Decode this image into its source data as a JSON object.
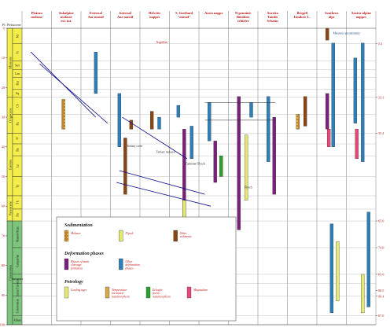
{
  "axis": {
    "unit": "m.y.",
    "ticks": [
      {
        "value": 0,
        "label": "0"
      },
      {
        "value": 10,
        "label": "10"
      },
      {
        "value": 20,
        "label": "20"
      },
      {
        "value": 30,
        "label": "30"
      },
      {
        "value": 40,
        "label": "40"
      },
      {
        "value": 50,
        "label": "50"
      },
      {
        "value": 60,
        "label": "60"
      },
      {
        "value": 70,
        "label": "70"
      },
      {
        "value": 80,
        "label": "80"
      },
      {
        "value": 90,
        "label": "90"
      },
      {
        "value": 100,
        "label": "100"
      }
    ],
    "right_ticks": [
      {
        "value": 5.2,
        "label": "5.2"
      },
      {
        "value": 23.3,
        "label": "23.3"
      },
      {
        "value": 35.4,
        "label": "35.4"
      },
      {
        "value": 65.0,
        "label": "65.0"
      },
      {
        "value": 74.0,
        "label": "74.0"
      },
      {
        "value": 83.0,
        "label": "83.0"
      },
      {
        "value": 88.5,
        "label": "88.5"
      },
      {
        "value": 90.4,
        "label": "90.4"
      },
      {
        "value": 97.0,
        "label": "97.0"
      }
    ]
  },
  "corner": {
    "label": "Pl / Pleistocene"
  },
  "periods": [
    {
      "label": "Miocene",
      "from": 0,
      "to": 23.3,
      "color": "#f4ee4a"
    },
    {
      "label": "Oligocene",
      "from": 23.3,
      "to": 35.4,
      "color": "#f4ee4a"
    },
    {
      "label": "Eocene",
      "from": 35.4,
      "to": 56.5,
      "color": "#f4ee4a"
    },
    {
      "label": "Paleocene",
      "from": 56.5,
      "to": 65.0,
      "color": "#f4ee4a"
    },
    {
      "label": "Cretaceous",
      "from": 65.0,
      "to": 100,
      "color": "#7dc47d"
    }
  ],
  "stages": [
    {
      "label": "Me",
      "from": 0,
      "to": 5.2
    },
    {
      "label": "To",
      "from": 5.2,
      "to": 11
    },
    {
      "label": "Serr",
      "from": 11,
      "to": 14
    },
    {
      "label": "Lan",
      "from": 14,
      "to": 16.5
    },
    {
      "label": "Bur",
      "from": 16.5,
      "to": 20.5
    },
    {
      "label": "Aq",
      "from": 20.5,
      "to": 23.3
    },
    {
      "label": "Ch",
      "from": 23.3,
      "to": 29
    },
    {
      "label": "Ru",
      "from": 29,
      "to": 35.4
    },
    {
      "label": "Pr",
      "from": 35.4,
      "to": 39
    },
    {
      "label": "Ba",
      "from": 39,
      "to": 43
    },
    {
      "label": "Lu",
      "from": 43,
      "to": 50
    },
    {
      "label": "Yp",
      "from": 50,
      "to": 56.5
    },
    {
      "label": "Th",
      "from": 56.5,
      "to": 61
    },
    {
      "label": "Da",
      "from": 61,
      "to": 65
    },
    {
      "label": "Maastrichtian",
      "from": 65,
      "to": 74
    },
    {
      "label": "Campanian",
      "from": 74,
      "to": 83
    },
    {
      "label": "Santonian",
      "from": 83,
      "to": 86
    },
    {
      "label": "Coniacian Turonian",
      "from": 86,
      "to": 90.4
    },
    {
      "label": "Cenomanian",
      "from": 90.4,
      "to": 97
    },
    {
      "label": "Albian",
      "from": 97,
      "to": 100
    }
  ],
  "columns": [
    {
      "label": "Plateau molasse"
    },
    {
      "label": "Subalpine molasse ext. int."
    },
    {
      "label": "External Aar massif"
    },
    {
      "label": "Internal Aar massif"
    },
    {
      "label": "Helvetic nappes"
    },
    {
      "label": "S. Gotthard \"massif\""
    },
    {
      "label": "Aosta nappe"
    },
    {
      "label": "N-penninic Bündner schiefer"
    },
    {
      "label": "Suretta Tambo Schams"
    },
    {
      "label": "Bergell Insubric L."
    },
    {
      "label": "Southern alps"
    },
    {
      "label": "Austro-alpine nappes"
    }
  ],
  "bars": [
    {
      "col": 1,
      "off": 0.35,
      "from": 24,
      "to": 34,
      "color": "#c97e2a",
      "kind": "pattern"
    },
    {
      "col": 2,
      "off": 0.45,
      "from": 8,
      "to": 22,
      "color": "#2c7fb8"
    },
    {
      "col": 3,
      "off": 0.25,
      "from": 22,
      "to": 40,
      "color": "#2c7fb8"
    },
    {
      "col": 3,
      "off": 0.45,
      "from": 37,
      "to": 56,
      "color": "#8b4513"
    },
    {
      "col": 3,
      "off": 0.65,
      "from": 31,
      "to": 34,
      "color": "#8b4513"
    },
    {
      "col": 4,
      "off": 0.35,
      "from": 28,
      "to": 34,
      "color": "#8b4513"
    },
    {
      "col": 4,
      "off": 0.6,
      "from": 30,
      "to": 34,
      "color": "#2c7fb8"
    },
    {
      "col": 5,
      "off": 0.25,
      "from": 26,
      "to": 30,
      "color": "#2c7fb8"
    },
    {
      "col": 5,
      "off": 0.45,
      "from": 34,
      "to": 65,
      "color": "#7a1f7a"
    },
    {
      "col": 5,
      "off": 0.45,
      "from": 58,
      "to": 68,
      "color": "#e2e870"
    },
    {
      "col": 5,
      "off": 0.7,
      "from": 33,
      "to": 44,
      "color": "#2c7fb8"
    },
    {
      "col": 6,
      "off": 0.3,
      "from": 25,
      "to": 38,
      "color": "#2c7fb8"
    },
    {
      "col": 6,
      "off": 0.5,
      "from": 38,
      "to": 52,
      "color": "#7a1f7a"
    },
    {
      "col": 6,
      "off": 0.7,
      "from": 43,
      "to": 50,
      "color": "#2ca02c"
    },
    {
      "col": 7,
      "off": 0.3,
      "from": 23,
      "to": 68,
      "color": "#7a1f7a"
    },
    {
      "col": 7,
      "off": 0.55,
      "from": 36,
      "to": 58,
      "color": "#e2e870"
    },
    {
      "col": 7,
      "off": 0.72,
      "from": 25,
      "to": 30,
      "color": "#2c7fb8"
    },
    {
      "col": 8,
      "off": 0.3,
      "from": 23,
      "to": 45,
      "color": "#2c7fb8"
    },
    {
      "col": 8,
      "off": 0.5,
      "from": 30,
      "to": 56,
      "color": "#7a1f7a"
    },
    {
      "col": 9,
      "off": 0.3,
      "from": 29,
      "to": 34,
      "color": "#e8477a",
      "kind": "pattern"
    },
    {
      "col": 9,
      "off": 0.55,
      "from": 23,
      "to": 33,
      "color": "#8b4513"
    },
    {
      "col": 10,
      "off": 0.3,
      "from": 0,
      "to": 4,
      "color": "#8b4513"
    },
    {
      "col": 10,
      "off": 0.5,
      "from": 5,
      "to": 40,
      "color": "#2c7fb8"
    },
    {
      "col": 10,
      "off": 0.3,
      "from": 22,
      "to": 34,
      "color": "#7a1f7a"
    },
    {
      "col": 10,
      "off": 0.35,
      "from": 34,
      "to": 40,
      "color": "#e8477a"
    },
    {
      "col": 10,
      "off": 0.45,
      "from": 66,
      "to": 96,
      "color": "#2c7fb8"
    },
    {
      "col": 10,
      "off": 0.65,
      "from": 72,
      "to": 92,
      "color": "#e2e870"
    },
    {
      "col": 11,
      "off": 0.25,
      "from": 10,
      "to": 32,
      "color": "#2c7fb8"
    },
    {
      "col": 11,
      "off": 0.5,
      "from": 5,
      "to": 45,
      "color": "#2c7fb8"
    },
    {
      "col": 11,
      "off": 0.3,
      "from": 34,
      "to": 44,
      "color": "#e8477a"
    },
    {
      "col": 11,
      "off": 0.7,
      "from": 62,
      "to": 94,
      "color": "#2c7fb8"
    },
    {
      "col": 11,
      "off": 0.5,
      "from": 83,
      "to": 96,
      "color": "#e2e870"
    }
  ],
  "annotations": [
    {
      "text": "Mesozoic unconformity",
      "col": 10,
      "val": 2,
      "color": "#0a3a8a"
    },
    {
      "text": "Nagelfluh",
      "col": 4,
      "val": 5,
      "color": "#c01818"
    },
    {
      "text": "Flysch",
      "col": 7,
      "val": 54,
      "color": "#1a1a1a"
    },
    {
      "text": "Carboneri Flysch",
      "col": 5,
      "val": 46,
      "color": "#1a1a1a"
    },
    {
      "text": "Tertiary molasse",
      "col": 4,
      "val": 42,
      "color": "#1a1a1a"
    },
    {
      "text": "Tertiary cover",
      "col": 3,
      "val": 40,
      "color": "#1a1a1a"
    }
  ],
  "legend": {
    "sections": [
      {
        "title": "Sedimentation",
        "items": [
          {
            "label": "Molasse",
            "color": "#c97e2a",
            "kind": "pattern"
          },
          {
            "label": "Flysch",
            "color": "#e2e870",
            "kind": "solid"
          },
          {
            "label": "Other sediments",
            "color": "#8b4513",
            "kind": "solid"
          }
        ]
      },
      {
        "title": "Deformation phases",
        "items": [
          {
            "label": "Phases of main cleavage formation",
            "color": "#7a1f7a",
            "kind": "solid"
          },
          {
            "label": "Other deformation phases",
            "color": "#2c7fb8",
            "kind": "solid"
          }
        ]
      },
      {
        "title": "Petrology",
        "items": [
          {
            "label": "Cooling ages",
            "color": "#e2e870",
            "kind": "solid"
          },
          {
            "label": "Temperature: increased metamorphism",
            "color": "#d4a94a",
            "kind": "solid"
          },
          {
            "label": "Eclogite facies metamorphism",
            "color": "#2ca02c",
            "kind": "solid"
          },
          {
            "label": "Magmatism",
            "color": "#e8477a",
            "kind": "solid"
          }
        ]
      }
    ]
  },
  "colors": {
    "title_red": "#c01818",
    "grid": "#7a7a7a",
    "miocene_fill": "#f4ee4a",
    "cretaceous_fill": "#7dc47d",
    "trend_line": "#0a0a8a"
  }
}
